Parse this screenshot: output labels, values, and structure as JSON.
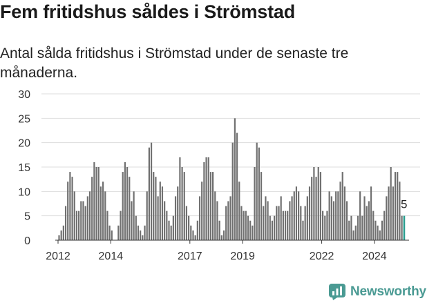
{
  "title": "Fem fritidshus såldes i Strömstad",
  "subtitle": "Antal sålda fritidshus i Strömstad under de senaste tre månaderna.",
  "brand": {
    "name": "Newsworthy",
    "icon": "newsworthy-logo-icon"
  },
  "colors": {
    "bar": "#707070",
    "highlight": "#2a9d8f",
    "grid": "#dddddd",
    "brand": "#4a9a93"
  },
  "chart_data": {
    "type": "bar",
    "title": "Fem fritidshus såldes i Strömstad",
    "subtitle": "Antal sålda fritidshus i Strömstad under de senaste tre månaderna.",
    "xlabel": "",
    "ylabel": "",
    "ylim": [
      0,
      30
    ],
    "yticks": [
      "0",
      "5",
      "10",
      "15",
      "20",
      "25",
      "30"
    ],
    "x_start": "2012-01",
    "x_ticks": [
      {
        "label": "2012",
        "month_index": 0
      },
      {
        "label": "2014",
        "month_index": 24
      },
      {
        "label": "2017",
        "month_index": 60
      },
      {
        "label": "2019",
        "month_index": 84
      },
      {
        "label": "2022",
        "month_index": 120
      },
      {
        "label": "2024",
        "month_index": 144
      }
    ],
    "grid": true,
    "highlight_label": "5",
    "values": [
      1,
      2,
      3,
      7,
      12,
      14,
      13,
      10,
      6,
      6,
      8,
      8,
      7,
      9,
      10,
      13,
      16,
      15,
      15,
      11,
      12,
      10,
      6,
      3,
      2,
      0,
      0,
      3,
      6,
      14,
      16,
      15,
      13,
      8,
      10,
      5,
      3,
      2,
      1,
      3,
      10,
      19,
      20,
      14,
      13,
      9,
      12,
      11,
      8,
      6,
      4,
      3,
      5,
      9,
      11,
      17,
      15,
      14,
      7,
      5,
      3,
      2,
      1,
      4,
      9,
      12,
      16,
      17,
      17,
      14,
      14,
      10,
      8,
      4,
      1,
      2,
      7,
      8,
      9,
      20,
      25,
      22,
      12,
      7,
      6,
      6,
      5,
      4,
      3,
      15,
      20,
      19,
      14,
      7,
      9,
      8,
      5,
      4,
      5,
      7,
      7,
      9,
      6,
      6,
      6,
      8,
      9,
      10,
      11,
      10,
      7,
      4,
      7,
      9,
      11,
      13,
      15,
      13,
      15,
      14,
      6,
      5,
      6,
      10,
      9,
      8,
      10,
      10,
      12,
      14,
      11,
      8,
      4,
      5,
      2,
      3,
      5,
      10,
      5,
      9,
      7,
      8,
      11,
      6,
      4,
      3,
      2,
      4,
      6,
      9,
      11,
      15,
      11,
      14,
      14,
      12,
      5,
      5
    ],
    "highlight_index": 157
  }
}
